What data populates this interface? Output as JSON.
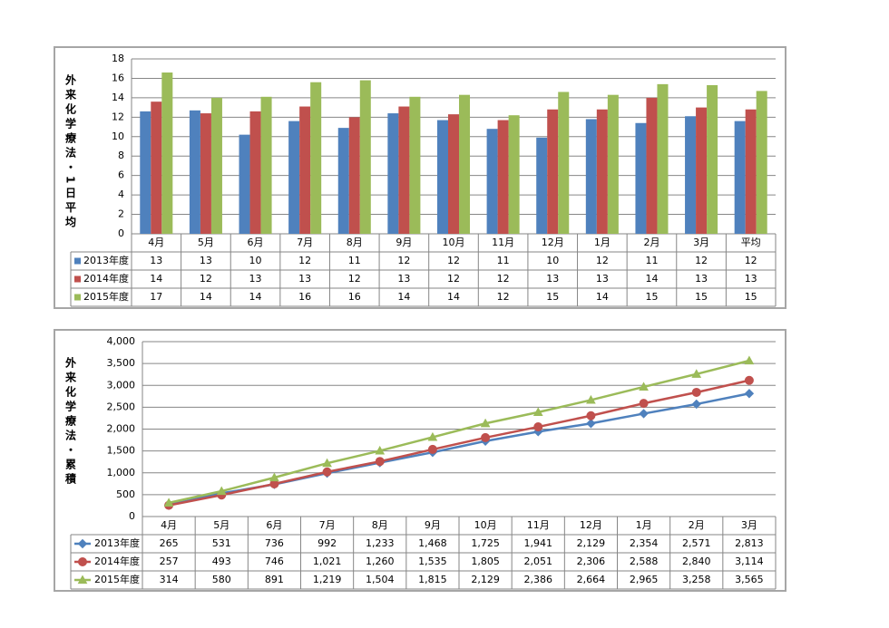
{
  "chart_data": [
    {
      "type": "bar",
      "y_label": "外来化学療法・1日平均",
      "categories": [
        "4月",
        "5月",
        "6月",
        "7月",
        "8月",
        "9月",
        "10月",
        "11月",
        "12月",
        "1月",
        "2月",
        "3月",
        "平均"
      ],
      "series": [
        {
          "name": "2013年度",
          "color": "#4f81bd",
          "values": [
            12.6,
            12.7,
            10.2,
            11.6,
            10.9,
            12.4,
            11.7,
            10.8,
            9.9,
            11.8,
            11.4,
            12.1,
            11.6
          ],
          "value_labels": [
            "13",
            "13",
            "10",
            "12",
            "11",
            "12",
            "12",
            "11",
            "10",
            "12",
            "11",
            "12",
            "12"
          ]
        },
        {
          "name": "2014年度",
          "color": "#c0504d",
          "values": [
            13.6,
            12.4,
            12.6,
            13.1,
            12.0,
            13.1,
            12.3,
            11.7,
            12.8,
            12.8,
            14.0,
            13.0,
            12.8
          ],
          "value_labels": [
            "14",
            "12",
            "13",
            "13",
            "12",
            "13",
            "12",
            "12",
            "13",
            "13",
            "14",
            "13",
            "13"
          ]
        },
        {
          "name": "2015年度",
          "color": "#9bbb59",
          "values": [
            16.6,
            14.0,
            14.1,
            15.6,
            15.8,
            14.1,
            14.3,
            12.2,
            14.6,
            14.3,
            15.4,
            15.3,
            14.7
          ],
          "value_labels": [
            "17",
            "14",
            "14",
            "16",
            "16",
            "14",
            "14",
            "12",
            "15",
            "14",
            "15",
            "15",
            "15"
          ]
        }
      ],
      "ylim": [
        0,
        18
      ],
      "yticks": [
        0,
        2,
        4,
        6,
        8,
        10,
        12,
        14,
        16,
        18
      ],
      "grid": true
    },
    {
      "type": "line",
      "y_label": "外来化学療法・累積",
      "categories": [
        "4月",
        "5月",
        "6月",
        "7月",
        "8月",
        "9月",
        "10月",
        "11月",
        "12月",
        "1月",
        "2月",
        "3月"
      ],
      "series": [
        {
          "name": "2013年度",
          "color": "#4f81bd",
          "marker": "diamond",
          "values": [
            265,
            531,
            736,
            992,
            1233,
            1468,
            1725,
            1941,
            2129,
            2354,
            2571,
            2813
          ],
          "value_labels": [
            "265",
            "531",
            "736",
            "992",
            "1,233",
            "1,468",
            "1,725",
            "1,941",
            "2,129",
            "2,354",
            "2,571",
            "2,813"
          ]
        },
        {
          "name": "2014年度",
          "color": "#c0504d",
          "marker": "circle",
          "values": [
            257,
            493,
            746,
            1021,
            1260,
            1535,
            1805,
            2051,
            2306,
            2588,
            2840,
            3114
          ],
          "value_labels": [
            "257",
            "493",
            "746",
            "1,021",
            "1,260",
            "1,535",
            "1,805",
            "2,051",
            "2,306",
            "2,588",
            "2,840",
            "3,114"
          ]
        },
        {
          "name": "2015年度",
          "color": "#9bbb59",
          "marker": "triangle",
          "values": [
            314,
            580,
            891,
            1219,
            1504,
            1815,
            2129,
            2386,
            2664,
            2965,
            3258,
            3565
          ],
          "value_labels": [
            "314",
            "580",
            "891",
            "1,219",
            "1,504",
            "1,815",
            "2,129",
            "2,386",
            "2,664",
            "2,965",
            "3,258",
            "3,565"
          ]
        }
      ],
      "ylim": [
        0,
        4000
      ],
      "yticks": [
        0,
        {
          "value": 500,
          "label": "500"
        },
        {
          "value": 1000,
          "label": "1,000"
        },
        {
          "value": 1500,
          "label": "1,500"
        },
        {
          "value": 2000,
          "label": "2,000"
        },
        {
          "value": 2500,
          "label": "2,500"
        },
        {
          "value": 3000,
          "label": "3,000"
        },
        {
          "value": 3500,
          "label": "3,500"
        },
        {
          "value": 4000,
          "label": "4,000"
        }
      ],
      "grid": true
    }
  ]
}
